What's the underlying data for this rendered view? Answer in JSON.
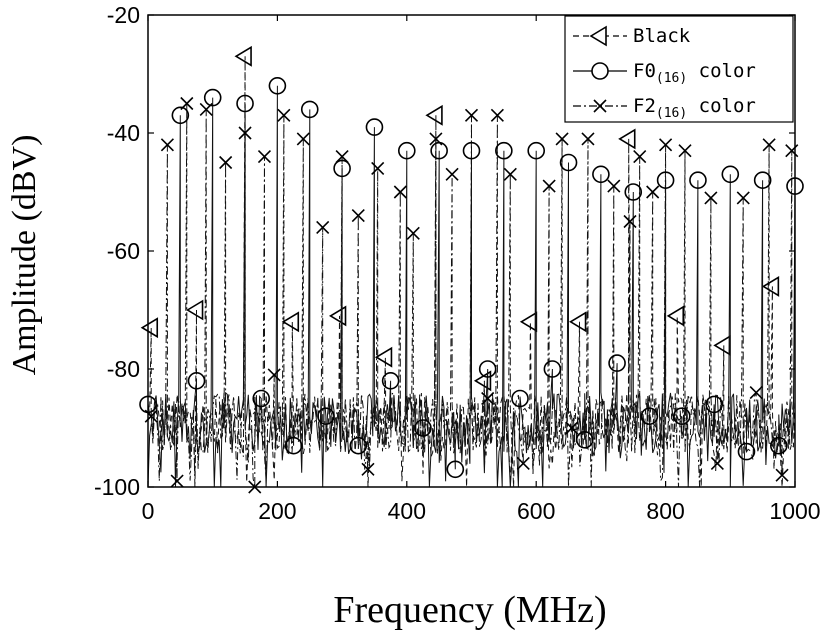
{
  "chart_data": {
    "type": "line",
    "title": "",
    "xlabel": "Frequency (MHz)",
    "ylabel": "Amplitude (dBV)",
    "xlim": [
      0,
      1000
    ],
    "ylim": [
      -100,
      -20
    ],
    "xticks": [
      0,
      200,
      400,
      600,
      800,
      1000
    ],
    "yticks": [
      -20,
      -40,
      -60,
      -80,
      -100
    ],
    "grid": false,
    "legend_position": "top-right",
    "noise_floor": [
      -100,
      -84
    ],
    "series": [
      {
        "name": "Black",
        "legend_label": "Black",
        "subscript": "",
        "legend_suffix": "",
        "style": "dashed",
        "marker": "triangle-left",
        "x": [
          5,
          75,
          150,
          223,
          296,
          367,
          445,
          520,
          591,
          667,
          743,
          818,
          890,
          965
        ],
        "values": [
          -73,
          -70,
          -27,
          -72,
          -71,
          -78,
          -37,
          -82,
          -72,
          -72,
          -41,
          -71,
          -76,
          -66
        ]
      },
      {
        "name": "F0(16) color",
        "legend_label": "F0",
        "subscript": "(16)",
        "legend_suffix": " color",
        "style": "solid",
        "marker": "circle",
        "x": [
          0,
          50,
          75,
          100,
          150,
          175,
          200,
          225,
          250,
          275,
          300,
          325,
          350,
          375,
          400,
          425,
          450,
          475,
          500,
          525,
          550,
          575,
          600,
          625,
          650,
          675,
          700,
          725,
          750,
          775,
          800,
          825,
          850,
          875,
          900,
          925,
          950,
          975,
          1000
        ],
        "values": [
          -86,
          -37,
          -82,
          -34,
          -35,
          -85,
          -32,
          -93,
          -36,
          -88,
          -46,
          -93,
          -39,
          -82,
          -43,
          -90,
          -43,
          -97,
          -43,
          -80,
          -43,
          -85,
          -43,
          -80,
          -45,
          -92,
          -47,
          -79,
          -50,
          -88,
          -48,
          -88,
          -48,
          -86,
          -47,
          -94,
          -48,
          -93,
          -49
        ]
      },
      {
        "name": "F2(16) color",
        "legend_label": "F2",
        "subscript": "(16)",
        "legend_suffix": " color",
        "style": "dashdot",
        "marker": "x",
        "x": [
          5,
          30,
          45,
          60,
          90,
          120,
          150,
          165,
          180,
          195,
          210,
          240,
          270,
          300,
          325,
          340,
          355,
          390,
          410,
          445,
          470,
          500,
          525,
          540,
          560,
          580,
          620,
          640,
          655,
          680,
          720,
          745,
          760,
          780,
          800,
          830,
          870,
          880,
          920,
          940,
          960,
          980,
          995
        ],
        "values": [
          -88,
          -42,
          -99,
          -35,
          -36,
          -45,
          -40,
          -100,
          -44,
          -81,
          -37,
          -41,
          -56,
          -44,
          -54,
          -97,
          -46,
          -50,
          -57,
          -41,
          -47,
          -37,
          -85,
          -37,
          -47,
          -96,
          -49,
          -41,
          -90,
          -41,
          -49,
          -55,
          -44,
          -50,
          -42,
          -43,
          -51,
          -96,
          -51,
          -84,
          -42,
          -98,
          -43
        ]
      }
    ]
  }
}
